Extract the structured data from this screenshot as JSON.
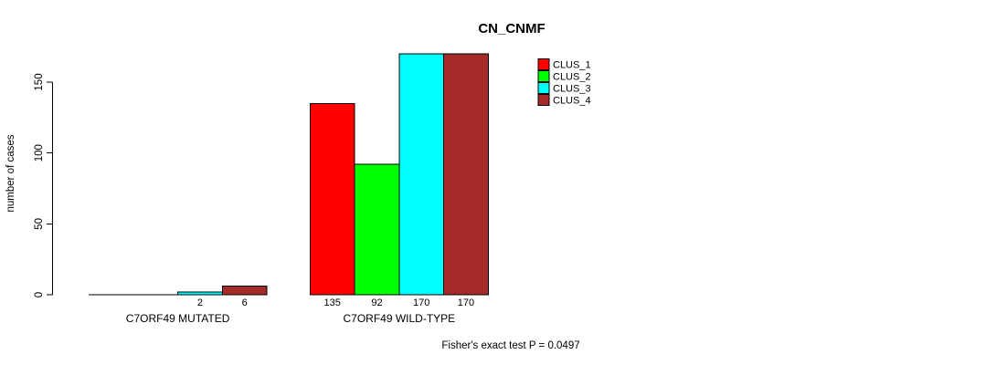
{
  "chart_data": {
    "type": "bar",
    "title": "CN_CNMF",
    "ylabel": "number of cases",
    "footnote": "Fisher's exact test P = 0.0497",
    "groups": [
      "C7ORF49 MUTATED",
      "C7ORF49 WILD-TYPE"
    ],
    "series": [
      {
        "name": "CLUS_1",
        "color": "#FF0000",
        "values": [
          0,
          135
        ]
      },
      {
        "name": "CLUS_2",
        "color": "#00FF00",
        "values": [
          0,
          92
        ]
      },
      {
        "name": "CLUS_3",
        "color": "#00FFFF",
        "values": [
          2,
          170
        ]
      },
      {
        "name": "CLUS_4",
        "color": "#A52A2A",
        "values": [
          6,
          170
        ]
      }
    ],
    "yticks": [
      0,
      50,
      100,
      150
    ],
    "ylim": [
      0,
      170
    ],
    "bar_labels_shown": [
      "2",
      "6",
      "135",
      "92",
      "170",
      "170"
    ],
    "legend_position": "top-right",
    "grid": false,
    "axis_color": "#000000",
    "bar_border_color": "#000000"
  }
}
